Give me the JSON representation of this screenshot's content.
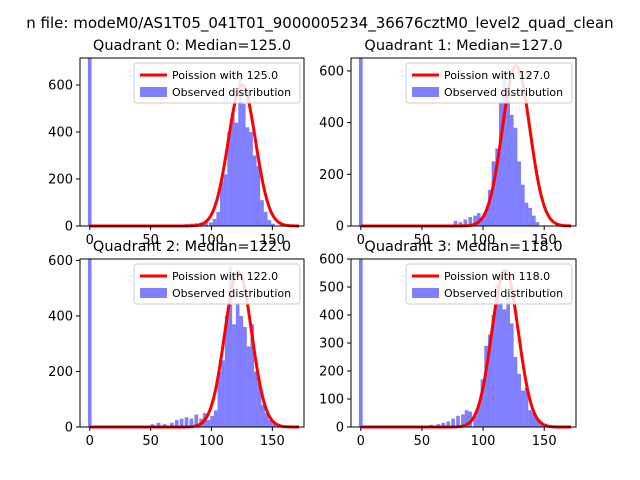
{
  "figure": {
    "suptitle": "n file: modeM0/AS1T05_041T01_9000005234_36676cztM0_level2_quad_clean"
  },
  "colors": {
    "observed": "#0000ff",
    "poisson": "#ff0000",
    "axes": "#000000",
    "background": "#ffffff"
  },
  "chart_data": [
    {
      "type": "bar",
      "title": "Quadrant 0: Median=125.0",
      "median": 125.0,
      "xlim": [
        -8,
        176
      ],
      "ylim": [
        0,
        715
      ],
      "xticks": [
        0,
        50,
        100,
        150
      ],
      "yticks": [
        0,
        200,
        400,
        600
      ],
      "bin_start": 98,
      "bin_width": 3,
      "counts": [
        15,
        30,
        60,
        190,
        220,
        400,
        480,
        440,
        650,
        520,
        420,
        400,
        300,
        255,
        110,
        60,
        25,
        10
      ],
      "zero_bin_count": 715,
      "low_tail": [
        [
          78,
          8
        ],
        [
          82,
          10
        ],
        [
          86,
          12
        ],
        [
          90,
          15
        ],
        [
          94,
          20
        ]
      ],
      "legend": [
        "Poission with 125.0",
        "Observed distribution"
      ],
      "poisson_mean": 125.0,
      "poisson_peak": 600
    },
    {
      "type": "bar",
      "title": "Quadrant 1: Median=127.0",
      "median": 127.0,
      "xlim": [
        -8,
        176
      ],
      "ylim": [
        0,
        650
      ],
      "xticks": [
        0,
        50,
        100,
        150
      ],
      "yticks": [
        0,
        200,
        400,
        600
      ],
      "bin_start": 98,
      "bin_width": 3,
      "counts": [
        30,
        60,
        140,
        250,
        300,
        480,
        600,
        520,
        430,
        380,
        250,
        160,
        90,
        70,
        40,
        15
      ],
      "zero_bin_count": 650,
      "low_tail": [
        [
          76,
          20
        ],
        [
          80,
          15
        ],
        [
          84,
          25
        ],
        [
          88,
          35
        ],
        [
          92,
          40
        ],
        [
          95,
          50
        ]
      ],
      "legend": [
        "Poission with 127.0",
        "Observed distribution"
      ],
      "poisson_mean": 127.0,
      "poisson_peak": 620
    },
    {
      "type": "bar",
      "title": "Quadrant 2: Median=122.0",
      "median": 122.0,
      "xlim": [
        -8,
        176
      ],
      "ylim": [
        0,
        605
      ],
      "xticks": [
        0,
        50,
        100,
        150
      ],
      "yticks": [
        0,
        200,
        400,
        600
      ],
      "bin_start": 96,
      "bin_width": 3,
      "counts": [
        25,
        40,
        60,
        200,
        240,
        400,
        580,
        370,
        450,
        400,
        360,
        290,
        370,
        200,
        160,
        80,
        50,
        25,
        20
      ],
      "zero_bin_count": 605,
      "low_tail": [
        [
          50,
          10
        ],
        [
          55,
          15
        ],
        [
          60,
          10
        ],
        [
          66,
          15
        ],
        [
          70,
          25
        ],
        [
          74,
          30
        ],
        [
          78,
          35
        ],
        [
          82,
          30
        ],
        [
          86,
          45
        ],
        [
          90,
          30
        ],
        [
          93,
          50
        ]
      ],
      "legend": [
        "Poission with 122.0",
        "Observed distribution"
      ],
      "poisson_mean": 122.0,
      "poisson_peak": 560
    },
    {
      "type": "bar",
      "title": "Quadrant 3: Median=118.0",
      "median": 118.0,
      "xlim": [
        -8,
        176
      ],
      "ylim": [
        0,
        600
      ],
      "xticks": [
        0,
        50,
        100,
        150
      ],
      "yticks": [
        0,
        100,
        200,
        300,
        400,
        500,
        600
      ],
      "bin_start": 92,
      "bin_width": 3,
      "counts": [
        40,
        80,
        170,
        290,
        330,
        400,
        510,
        450,
        420,
        470,
        370,
        250,
        190,
        130,
        140,
        60,
        50,
        30,
        20
      ],
      "zero_bin_count": 600,
      "low_tail": [
        [
          56,
          8
        ],
        [
          62,
          10
        ],
        [
          66,
          15
        ],
        [
          70,
          20
        ],
        [
          74,
          30
        ],
        [
          78,
          40
        ],
        [
          82,
          45
        ],
        [
          85,
          60
        ],
        [
          88,
          55
        ]
      ],
      "legend": [
        "Poission with 118.0",
        "Observed distribution"
      ],
      "poisson_mean": 118.0,
      "poisson_peak": 560
    }
  ]
}
